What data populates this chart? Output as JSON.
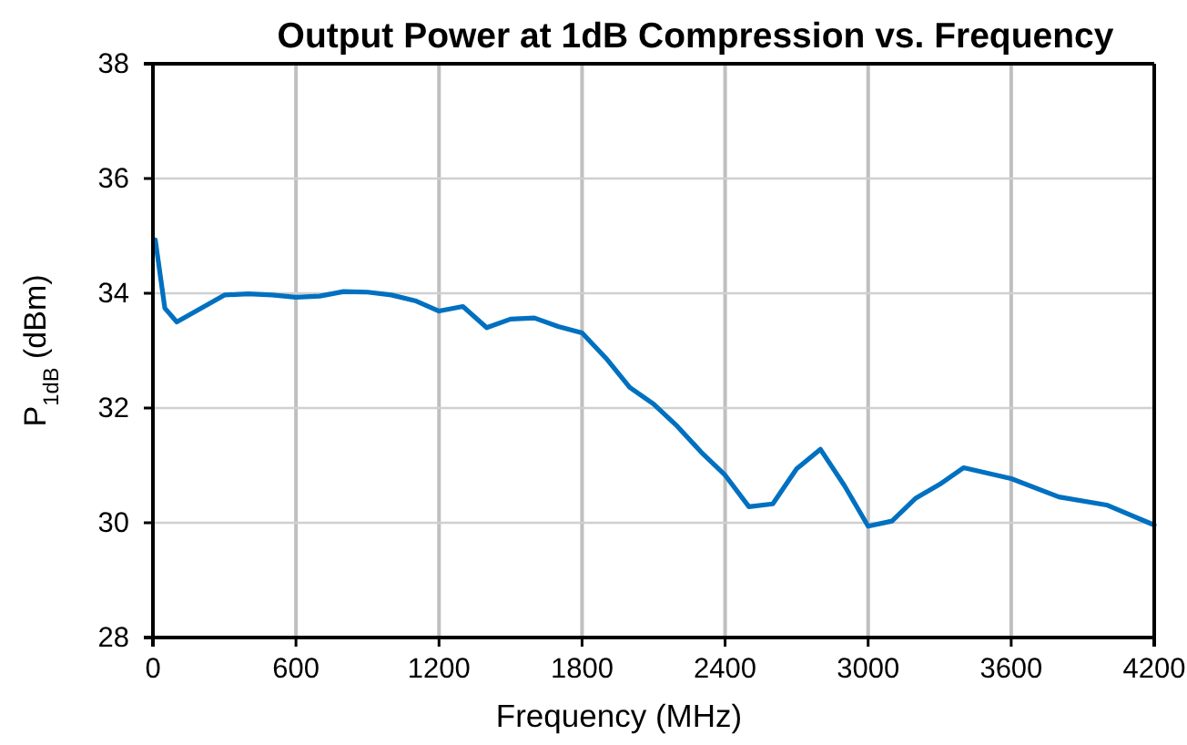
{
  "chart_data": {
    "type": "line",
    "title": "Output Power at 1dB Compression vs. Frequency",
    "xlabel": "Frequency (MHz)",
    "ylabel": "P$_{1dB}$ (dBm)",
    "x": [
      10,
      50,
      100,
      300,
      400,
      500,
      600,
      700,
      800,
      900,
      1000,
      1100,
      1200,
      1300,
      1400,
      1500,
      1600,
      1700,
      1800,
      1900,
      2000,
      2100,
      2200,
      2300,
      2400,
      2500,
      2600,
      2700,
      2800,
      2900,
      3000,
      3100,
      3200,
      3300,
      3400,
      3600,
      3800,
      4000,
      4200
    ],
    "series": [
      {
        "color": "#0070c0",
        "values": [
          34.93,
          33.74,
          33.5,
          33.97,
          33.99,
          33.97,
          33.93,
          33.95,
          34.03,
          34.02,
          33.97,
          33.87,
          33.69,
          33.77,
          33.4,
          33.55,
          33.57,
          33.42,
          33.31,
          32.87,
          32.36,
          32.07,
          31.68,
          31.23,
          30.83,
          30.28,
          30.33,
          30.94,
          31.28,
          30.65,
          29.94,
          30.03,
          30.43,
          30.67,
          30.96,
          30.77,
          30.45,
          30.31,
          29.96
        ]
      }
    ],
    "xlim": [
      0,
      4200
    ],
    "xticks": [
      0,
      600,
      1200,
      1800,
      2400,
      3000,
      3600,
      4200
    ],
    "ylim": [
      28,
      38
    ],
    "yticks": [
      28,
      30,
      32,
      34,
      36,
      38
    ],
    "grid": true,
    "marker": "none",
    "line_style": "solid"
  }
}
